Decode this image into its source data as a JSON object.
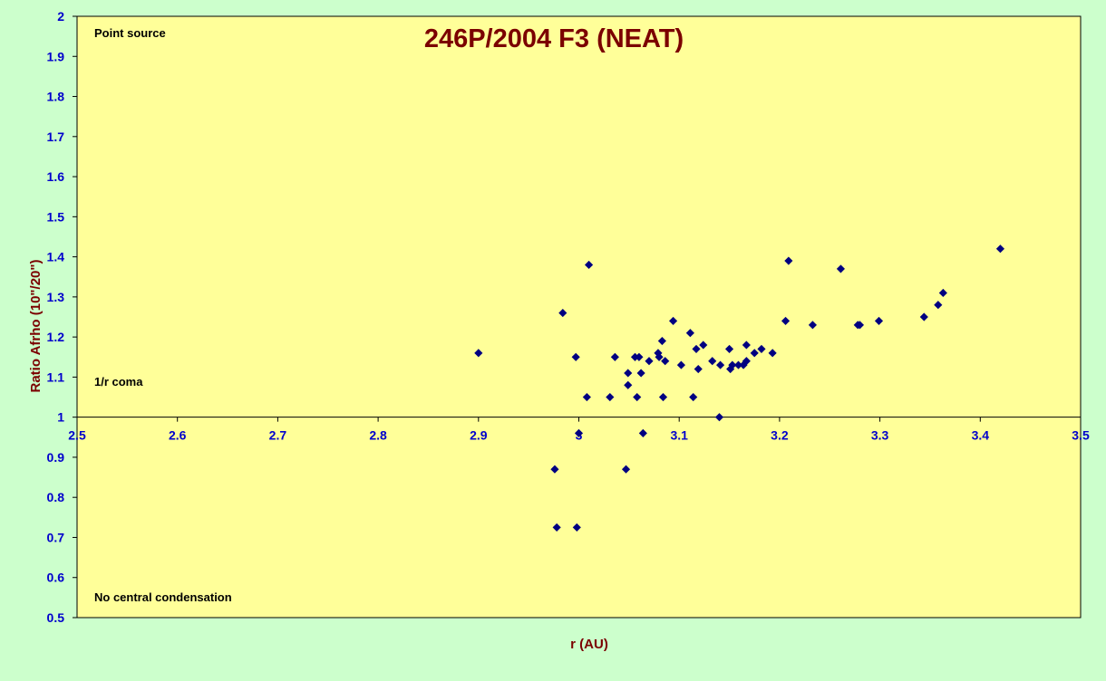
{
  "chart_data": {
    "type": "scatter",
    "title": "246P/2004 F3 (NEAT)",
    "xlabel": "r (AU)",
    "ylabel": "Ratio Afrho (10\"/20\")",
    "xlim": [
      2.5,
      3.5
    ],
    "ylim": [
      0.5,
      2.0
    ],
    "x_axis_crosses_y": 1.0,
    "x_ticks": [
      "2.5",
      "2.6",
      "2.7",
      "2.8",
      "2.9",
      "3",
      "3.1",
      "3.2",
      "3.3",
      "3.4",
      "3.5"
    ],
    "y_ticks": [
      "0.5",
      "0.6",
      "0.7",
      "0.8",
      "0.9",
      "1",
      "1.1",
      "1.2",
      "1.3",
      "1.4",
      "1.5",
      "1.6",
      "1.7",
      "1.8",
      "1.9",
      "2"
    ],
    "grid": false,
    "annotations": [
      "Point source",
      "1/r coma",
      "No central condensation"
    ],
    "colors": {
      "page_background": "#ccffcc",
      "plot_background": "#ffff99",
      "marker": "#000080",
      "title": "#7b0000",
      "tick_labels": "#0000cc"
    },
    "series": [
      {
        "marker": "diamond",
        "x": [
          2.9,
          2.976,
          2.978,
          2.984,
          2.997,
          2.998,
          3.0,
          3.008,
          3.01,
          3.031,
          3.036,
          3.047,
          3.049,
          3.049,
          3.056,
          3.058,
          3.06,
          3.062,
          3.064,
          3.07,
          3.079,
          3.08,
          3.083,
          3.084,
          3.086,
          3.094,
          3.102,
          3.111,
          3.114,
          3.117,
          3.119,
          3.124,
          3.133,
          3.14,
          3.141,
          3.15,
          3.151,
          3.153,
          3.159,
          3.164,
          3.167,
          3.167,
          3.175,
          3.182,
          3.193,
          3.206,
          3.209,
          3.233,
          3.261,
          3.278,
          3.28,
          3.299,
          3.344,
          3.358,
          3.363,
          3.42
        ],
        "y": [
          1.16,
          0.87,
          0.725,
          1.26,
          1.15,
          0.725,
          0.96,
          1.05,
          1.38,
          1.05,
          1.15,
          0.87,
          1.08,
          1.11,
          1.15,
          1.05,
          1.15,
          1.11,
          0.96,
          1.14,
          1.16,
          1.15,
          1.19,
          1.05,
          1.14,
          1.24,
          1.13,
          1.21,
          1.05,
          1.17,
          1.12,
          1.18,
          1.14,
          1.0,
          1.13,
          1.17,
          1.12,
          1.13,
          1.13,
          1.13,
          1.14,
          1.18,
          1.16,
          1.17,
          1.16,
          1.24,
          1.39,
          1.23,
          1.37,
          1.23,
          1.23,
          1.24,
          1.25,
          1.28,
          1.31,
          1.42
        ]
      }
    ]
  }
}
